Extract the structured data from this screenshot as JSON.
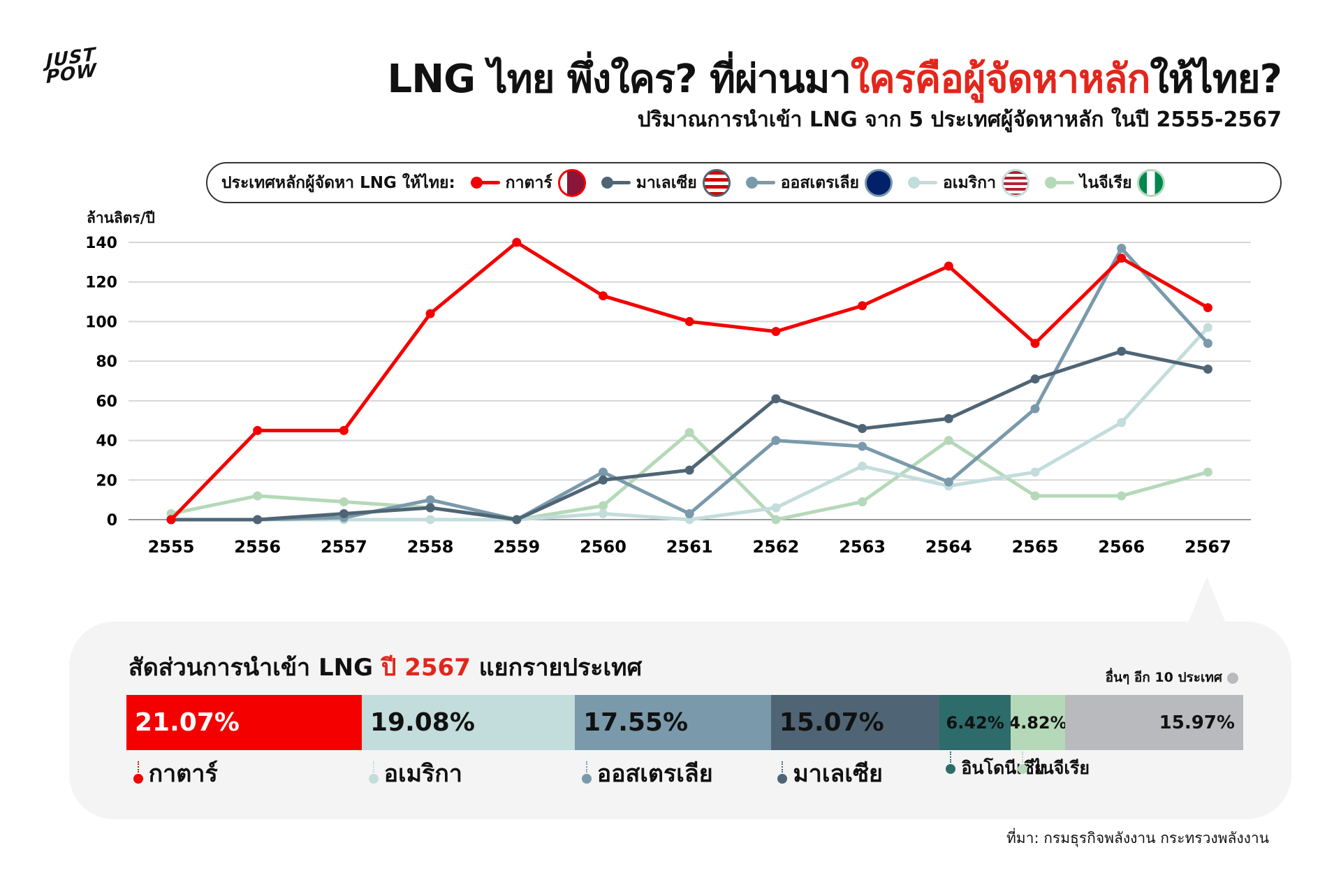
{
  "logo": "JUST POW",
  "header": {
    "title_part1": "LNG ไทย พึ่งใคร? ที่ผ่านมา",
    "title_highlight": "ใครคือผู้จัดหาหลัก",
    "title_part2": "ให้ไทย?",
    "subtitle": "ปริมาณการนำเข้า LNG จาก 5 ประเทศผู้จัดหาหลัก ในปี 2555-2567"
  },
  "legend": {
    "label": "ประเทศหลักผู้จัดหา LNG ให้ไทย:"
  },
  "chart_data": {
    "type": "line",
    "title": "ปริมาณการนำเข้า LNG จาก 5 ประเทศผู้จัดหาหลัก ในปี 2555-2567",
    "ylabel": "ล้านลิตร/ปี",
    "xlabel": "",
    "ylim": [
      0,
      140
    ],
    "yticks": [
      0,
      20,
      40,
      60,
      80,
      100,
      120,
      140
    ],
    "grid": true,
    "legend": "top",
    "categories": [
      "2555",
      "2556",
      "2557",
      "2558",
      "2559",
      "2560",
      "2561",
      "2562",
      "2563",
      "2564",
      "2565",
      "2566",
      "2567"
    ],
    "series": [
      {
        "name": "กาตาร์",
        "color": "#f50000",
        "values": [
          0,
          45,
          45,
          104,
          140,
          113,
          100,
          95,
          108,
          128,
          89,
          132,
          107
        ]
      },
      {
        "name": "มาเลเซีย",
        "color": "#4f6575",
        "values": [
          0,
          0,
          3,
          6,
          0,
          20,
          25,
          61,
          46,
          51,
          71,
          85,
          76
        ]
      },
      {
        "name": "ออสเตรเลีย",
        "color": "#7a9aab",
        "values": [
          0,
          0,
          1,
          10,
          0,
          24,
          3,
          40,
          37,
          19,
          56,
          137,
          89
        ]
      },
      {
        "name": "อเมริกา",
        "color": "#c3dcdc",
        "values": [
          0,
          0,
          0,
          0,
          0,
          3,
          0,
          6,
          27,
          17,
          24,
          49,
          97
        ]
      },
      {
        "name": "ไนจีเรีย",
        "color": "#b5d9b8",
        "values": [
          3,
          12,
          9,
          6,
          0,
          7,
          44,
          0,
          9,
          40,
          12,
          12,
          24
        ]
      }
    ]
  },
  "share": {
    "title_part1": "สัดส่วนการนำเข้า LNG ",
    "title_highlight": "ปี 2567",
    "title_part2": " แยกรายประเทศ",
    "others_note": "อื่นๆ อีก 10 ประเทศ",
    "segments": [
      {
        "name": "กาตาร์",
        "label": "21.07%",
        "value": 21.07,
        "color": "#f50000"
      },
      {
        "name": "อเมริกา",
        "label": "19.08%",
        "value": 19.08,
        "color": "#c3dcdc"
      },
      {
        "name": "ออสเตรเลีย",
        "label": "17.55%",
        "value": 17.55,
        "color": "#7a9aab"
      },
      {
        "name": "มาเลเซีย",
        "label": "15.07%",
        "value": 15.07,
        "color": "#4f6575"
      },
      {
        "name": "อินโดนีเซีย",
        "label": "6.42%",
        "value": 6.42,
        "color": "#2e6b6b"
      },
      {
        "name": "ไนจีเรีย",
        "label": "4.82%",
        "value": 4.82,
        "color": "#b5d9b8"
      },
      {
        "name": "อื่นๆ",
        "label": "15.97%",
        "value": 15.97,
        "color": "#b8babd"
      }
    ]
  },
  "source": "ที่มา: กรมธุรกิจพลังงาน กระทรวงพลังงาน"
}
